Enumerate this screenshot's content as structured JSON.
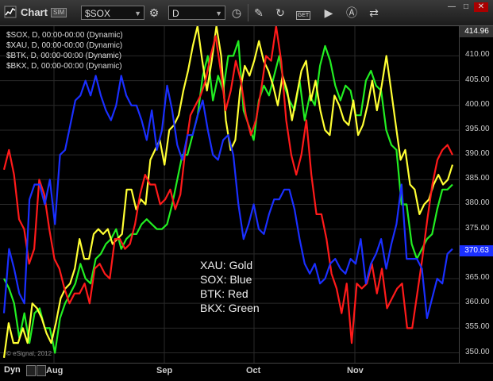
{
  "toolbar": {
    "title": "Chart",
    "badge": "SIM",
    "symbol": "$SOX",
    "timeframe": "D",
    "get_label": "GET"
  },
  "legend": [
    "$SOX, D, 00:00-00:00 (Dynamic)",
    "$XAU, D, 00:00-00:00 (Dynamic)",
    "$BTK, D, 00:00-00:00 (Dynamic)",
    "$BKX, D, 00:00-00:00 (Dynamic)"
  ],
  "annotation": [
    "XAU:  Gold",
    "SOX:  Blue",
    "BTK:  Red",
    "BKX:  Green"
  ],
  "copyright": "© eSignal, 2012",
  "footer": {
    "dyn": "Dyn"
  },
  "colors": {
    "xau": "#ffff33",
    "sox": "#1a2fff",
    "btk": "#ff1a1a",
    "bkx": "#22ee22",
    "last_tag_sox": "#1a2fff"
  },
  "chart_data": {
    "type": "line",
    "x_ticks": [
      "Aug",
      "Sep",
      "Oct",
      "Nov"
    ],
    "y_ticks": [
      350,
      355,
      360,
      365,
      370,
      375,
      380,
      385,
      390,
      395,
      400,
      405,
      410
    ],
    "ylim": [
      348,
      416
    ],
    "last_values": {
      "top": "414.96",
      "sox": "370.63"
    },
    "series": [
      {
        "name": "SOX",
        "values": [
          358,
          371,
          367,
          362,
          360,
          381,
          384,
          384,
          380,
          385,
          376,
          390,
          391,
          396,
          401,
          402,
          405,
          402,
          406,
          402,
          399,
          397,
          400,
          406,
          402,
          400,
          400,
          397,
          393,
          399,
          391,
          395,
          404,
          399,
          392,
          389,
          394,
          394,
          398,
          401,
          395,
          390,
          389,
          393,
          394,
          390,
          380,
          373,
          376,
          380,
          375,
          374,
          378,
          381,
          381,
          383,
          383,
          379,
          373,
          368,
          366,
          368,
          364,
          365,
          368,
          369,
          367,
          366,
          369,
          368,
          373,
          364,
          368,
          370,
          373,
          367,
          372,
          376,
          384,
          369,
          369,
          369,
          367,
          357,
          361,
          365,
          364,
          370,
          371
        ]
      },
      {
        "name": "XAU",
        "values": [
          349,
          356,
          352,
          352,
          355,
          352,
          360,
          359,
          357,
          354,
          352,
          356,
          361,
          363,
          364,
          367,
          373,
          369,
          369,
          374,
          375,
          374,
          375,
          372,
          373,
          374,
          383,
          383,
          379,
          381,
          380,
          389,
          391,
          393,
          388,
          395,
          396,
          398,
          403,
          407,
          412,
          416,
          409,
          403,
          409,
          416,
          410,
          397,
          391,
          393,
          403,
          408,
          406,
          409,
          413,
          409,
          407,
          404,
          400,
          406,
          403,
          397,
          402,
          407,
          409,
          401,
          405,
          399,
          395,
          394,
          402,
          400,
          397,
          396,
          401,
          394,
          396,
          400,
          405,
          399,
          404,
          410,
          403,
          396,
          389,
          391,
          384,
          383,
          378,
          380,
          381,
          384,
          386,
          384,
          385,
          388
        ]
      },
      {
        "name": "BTK",
        "values": [
          387,
          391,
          386,
          377,
          375,
          368,
          371,
          385,
          382,
          375,
          369,
          367,
          363,
          360,
          362,
          362,
          364,
          360,
          367,
          368,
          366,
          365,
          373,
          373,
          371,
          372,
          376,
          382,
          386,
          384,
          384,
          380,
          381,
          383,
          379,
          382,
          391,
          398,
          400,
          402,
          405,
          410,
          414,
          407,
          399,
          403,
          409,
          405,
          398,
          394,
          397,
          403,
          410,
          409,
          416,
          409,
          397,
          390,
          386,
          390,
          397,
          386,
          378,
          378,
          373,
          366,
          363,
          358,
          364,
          352,
          364,
          363,
          364,
          368,
          362,
          367,
          359,
          361,
          363,
          364,
          355,
          355,
          362,
          369,
          377,
          384,
          389,
          391,
          392,
          390
        ]
      },
      {
        "name": "BKX",
        "values": [
          365,
          363,
          360,
          353,
          358,
          352,
          358,
          359,
          355,
          355,
          350,
          357,
          360,
          362,
          364,
          368,
          365,
          364,
          369,
          370,
          372,
          373,
          375,
          371,
          373,
          374,
          374,
          376,
          377,
          376,
          375,
          375,
          376,
          380,
          385,
          390,
          390,
          394,
          398,
          406,
          410,
          401,
          406,
          403,
          410,
          410,
          413,
          399,
          396,
          393,
          401,
          404,
          402,
          406,
          410,
          404,
          401,
          399,
          405,
          397,
          402,
          400,
          408,
          412,
          409,
          404,
          401,
          404,
          403,
          398,
          398,
          405,
          407,
          404,
          403,
          395,
          392,
          391,
          380,
          380,
          372,
          369,
          371,
          373,
          374,
          379,
          383,
          383,
          384
        ]
      }
    ]
  }
}
